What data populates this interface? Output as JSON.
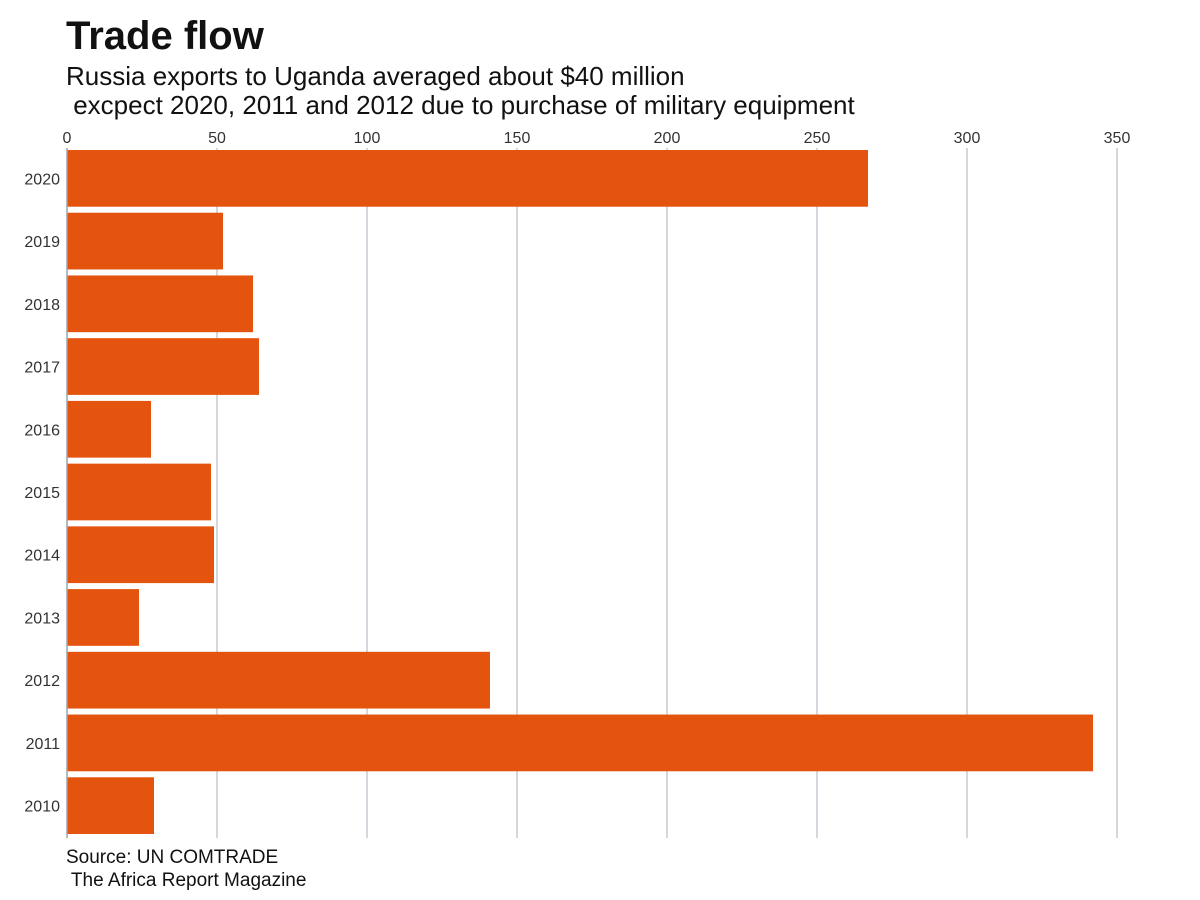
{
  "chart_data": {
    "type": "bar",
    "orientation": "horizontal",
    "title": "Trade flow",
    "subtitle": "Russia exports to Uganda averaged about $40 million\n excpect 2020, 2011 and 2012 due to purchase of military equipment",
    "source": "Source: UN COMTRADE\n The Africa Report Magazine",
    "categories": [
      "2020",
      "2019",
      "2018",
      "2017",
      "2016",
      "2015",
      "2014",
      "2013",
      "2012",
      "2011",
      "2010"
    ],
    "values": [
      267,
      52,
      62,
      64,
      28,
      48,
      49,
      24,
      141,
      342,
      29
    ],
    "x_ticks": [
      0,
      50,
      100,
      150,
      200,
      250,
      300,
      350
    ],
    "xlim": [
      0,
      350
    ],
    "grid": true,
    "legend": "none",
    "bar_color": "#e5540f",
    "grid_color": "#c5ccd3"
  }
}
